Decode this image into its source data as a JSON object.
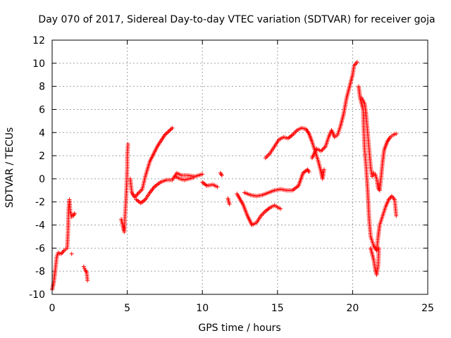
{
  "chart_data": {
    "type": "scatter",
    "title": "Day 070 of 2017, Sidereal Day-to-day VTEC variation (SDTVAR) for receiver goja",
    "xlabel": "GPS time / hours",
    "ylabel": "SDTVAR / TECUs",
    "xlim": [
      0,
      25
    ],
    "ylim": [
      -10,
      12
    ],
    "xticks": [
      0,
      5,
      10,
      15,
      20,
      25
    ],
    "yticks": [
      -10,
      -8,
      -6,
      -4,
      -2,
      0,
      2,
      4,
      6,
      8,
      10,
      12
    ],
    "xtick_labels": [
      "0",
      "5",
      "10",
      "15",
      "20",
      "25"
    ],
    "ytick_labels": [
      "-10",
      "-8",
      "-6",
      "-4",
      "-2",
      "0",
      "2",
      "4",
      "6",
      "8",
      "10",
      "12"
    ],
    "grid": true,
    "marker": "+",
    "color": "#ff0000",
    "segments": [
      [
        [
          0.0,
          -9.6
        ],
        [
          0.1,
          -9.0
        ],
        [
          0.2,
          -8.0
        ],
        [
          0.3,
          -6.8
        ],
        [
          0.4,
          -6.4
        ],
        [
          0.6,
          -6.5
        ],
        [
          0.8,
          -6.2
        ],
        [
          1.0,
          -6.0
        ],
        [
          1.05,
          -4.8
        ],
        [
          1.1,
          -2.5
        ],
        [
          1.15,
          -1.8
        ],
        [
          1.2,
          -2.8
        ],
        [
          1.3,
          -3.3
        ],
        [
          1.4,
          -3.2
        ],
        [
          1.5,
          -3.0
        ]
      ],
      [
        [
          1.3,
          -6.5
        ]
      ],
      [
        [
          2.1,
          -7.6
        ],
        [
          2.2,
          -7.9
        ],
        [
          2.3,
          -8.1
        ],
        [
          2.35,
          -8.8
        ]
      ],
      [
        [
          4.6,
          -3.5
        ],
        [
          4.7,
          -4.0
        ],
        [
          4.8,
          -4.6
        ],
        [
          4.85,
          -3.2
        ],
        [
          4.9,
          -2.2
        ],
        [
          4.95,
          -0.8
        ],
        [
          5.0,
          1.0
        ],
        [
          5.0,
          2.0
        ],
        [
          5.05,
          3.0
        ]
      ],
      [
        [
          5.2,
          0.0
        ],
        [
          5.3,
          -1.2
        ],
        [
          5.5,
          -1.6
        ],
        [
          5.7,
          -1.3
        ],
        [
          6.0,
          -0.9
        ],
        [
          6.2,
          0.2
        ],
        [
          6.5,
          1.5
        ],
        [
          7.0,
          2.8
        ],
        [
          7.5,
          3.8
        ],
        [
          8.0,
          4.4
        ]
      ],
      [
        [
          5.6,
          -1.8
        ],
        [
          5.9,
          -2.1
        ],
        [
          6.2,
          -1.8
        ],
        [
          6.5,
          -1.2
        ],
        [
          6.8,
          -0.7
        ],
        [
          7.2,
          -0.3
        ],
        [
          7.6,
          -0.1
        ],
        [
          8.0,
          -0.1
        ],
        [
          8.3,
          0.5
        ],
        [
          8.6,
          0.3
        ],
        [
          9.0,
          0.3
        ],
        [
          9.5,
          0.2
        ],
        [
          10.0,
          0.4
        ]
      ],
      [
        [
          8.2,
          0.2
        ],
        [
          8.5,
          0.0
        ],
        [
          8.8,
          -0.1
        ],
        [
          9.1,
          0.0
        ],
        [
          9.4,
          0.1
        ]
      ],
      [
        [
          10.0,
          -0.3
        ],
        [
          10.3,
          -0.6
        ],
        [
          10.7,
          -0.5
        ],
        [
          11.0,
          -0.7
        ]
      ],
      [
        [
          11.2,
          0.5
        ],
        [
          11.3,
          0.3
        ]
      ],
      [
        [
          11.7,
          -1.7
        ],
        [
          11.8,
          -2.2
        ]
      ],
      [
        [
          12.3,
          -1.3
        ],
        [
          12.7,
          -2.2
        ],
        [
          13.0,
          -3.2
        ],
        [
          13.3,
          -4.0
        ],
        [
          13.6,
          -3.8
        ],
        [
          13.9,
          -3.2
        ],
        [
          14.2,
          -2.8
        ],
        [
          14.5,
          -2.5
        ],
        [
          14.8,
          -2.3
        ],
        [
          15.2,
          -2.6
        ]
      ],
      [
        [
          12.8,
          -1.2
        ],
        [
          13.2,
          -1.4
        ],
        [
          13.6,
          -1.5
        ],
        [
          14.0,
          -1.4
        ],
        [
          14.4,
          -1.2
        ],
        [
          14.8,
          -1.0
        ],
        [
          15.2,
          -0.9
        ],
        [
          15.6,
          -1.0
        ],
        [
          16.0,
          -1.0
        ],
        [
          16.4,
          -0.6
        ],
        [
          16.7,
          0.5
        ],
        [
          17.0,
          0.8
        ],
        [
          17.1,
          0.6
        ]
      ],
      [
        [
          14.2,
          1.8
        ],
        [
          14.5,
          2.2
        ],
        [
          14.8,
          2.8
        ],
        [
          15.1,
          3.4
        ],
        [
          15.4,
          3.6
        ],
        [
          15.7,
          3.5
        ],
        [
          16.0,
          3.8
        ],
        [
          16.3,
          4.2
        ],
        [
          16.6,
          4.4
        ],
        [
          16.9,
          4.3
        ],
        [
          17.1,
          3.9
        ],
        [
          17.3,
          3.2
        ],
        [
          17.5,
          2.4
        ],
        [
          17.7,
          1.6
        ],
        [
          17.9,
          0.6
        ],
        [
          18.0,
          0.0
        ],
        [
          18.1,
          0.8
        ]
      ],
      [
        [
          17.3,
          1.8
        ],
        [
          17.6,
          2.6
        ],
        [
          17.9,
          2.4
        ],
        [
          18.2,
          2.8
        ],
        [
          18.4,
          3.6
        ],
        [
          18.6,
          4.2
        ],
        [
          18.8,
          3.6
        ],
        [
          19.0,
          3.8
        ],
        [
          19.2,
          4.6
        ],
        [
          19.4,
          5.6
        ],
        [
          19.6,
          7.0
        ],
        [
          19.8,
          8.0
        ],
        [
          20.0,
          9.0
        ],
        [
          20.1,
          9.8
        ],
        [
          20.3,
          10.1
        ]
      ],
      [
        [
          20.4,
          8.0
        ],
        [
          20.5,
          7.0
        ],
        [
          20.6,
          6.5
        ],
        [
          20.7,
          6.0
        ],
        [
          20.75,
          4.0
        ],
        [
          20.8,
          2.5
        ],
        [
          20.9,
          1.0
        ],
        [
          21.0,
          -1.0
        ],
        [
          21.1,
          -3.5
        ],
        [
          21.2,
          -5.0
        ],
        [
          21.4,
          -5.8
        ],
        [
          21.6,
          -6.2
        ],
        [
          21.7,
          -5.0
        ],
        [
          21.8,
          -4.0
        ],
        [
          22.0,
          -3.2
        ],
        [
          22.2,
          -2.4
        ],
        [
          22.4,
          -1.8
        ],
        [
          22.6,
          -1.5
        ],
        [
          22.8,
          -1.8
        ],
        [
          22.9,
          -3.2
        ]
      ],
      [
        [
          20.6,
          7.0
        ],
        [
          20.8,
          6.5
        ],
        [
          20.9,
          5.5
        ],
        [
          21.0,
          4.0
        ],
        [
          21.1,
          2.5
        ],
        [
          21.2,
          1.0
        ],
        [
          21.3,
          0.2
        ],
        [
          21.4,
          0.5
        ],
        [
          21.5,
          0.4
        ],
        [
          21.6,
          0.0
        ],
        [
          21.7,
          -0.8
        ],
        [
          21.8,
          -1.0
        ],
        [
          21.9,
          0.2
        ],
        [
          22.0,
          1.5
        ],
        [
          22.1,
          2.5
        ],
        [
          22.3,
          3.2
        ],
        [
          22.5,
          3.6
        ],
        [
          22.7,
          3.8
        ],
        [
          22.9,
          3.9
        ]
      ],
      [
        [
          21.2,
          -6.0
        ],
        [
          21.4,
          -7.0
        ],
        [
          21.5,
          -7.8
        ],
        [
          21.6,
          -8.3
        ],
        [
          21.7,
          -7.5
        ],
        [
          21.75,
          -6.0
        ]
      ]
    ]
  }
}
